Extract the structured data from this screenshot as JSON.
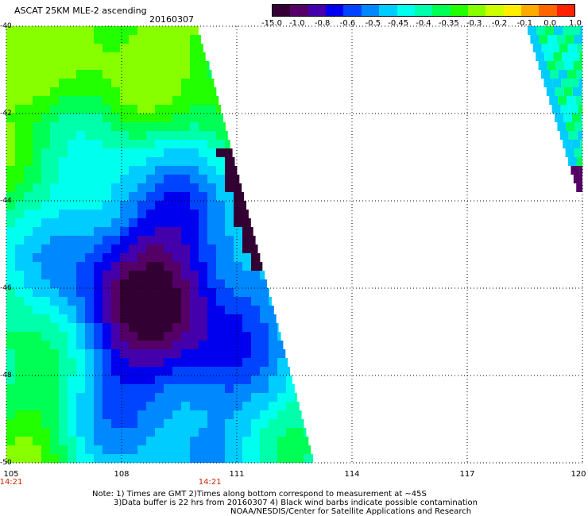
{
  "header": {
    "title": "ASCAT 25KM MLE-2 ascending",
    "date": "20160307"
  },
  "colorbar": {
    "colors": [
      "#330033",
      "#550066",
      "#4400aa",
      "#0000ee",
      "#0044ff",
      "#0088ff",
      "#00ccff",
      "#00ffee",
      "#00ffaa",
      "#00ff55",
      "#22ff00",
      "#88ff00",
      "#ccff00",
      "#ffee00",
      "#ffaa00",
      "#ff6600",
      "#ff2200"
    ],
    "labels": [
      "-15.0",
      "-1.0",
      "-0.8",
      "-0.6",
      "-0.5",
      "-0.45",
      "-0.4",
      "-0.35",
      "-0.3",
      "-0.2",
      "-0.1",
      "0.0",
      "1.0"
    ]
  },
  "map": {
    "lon_range": [
      105,
      120
    ],
    "lat_range": [
      -40,
      -50
    ],
    "lon_ticks": [
      "105",
      "108",
      "111",
      "114",
      "117",
      "120"
    ],
    "lat_ticks": [
      "-40",
      "-42",
      "-44",
      "-46",
      "-48",
      "-50"
    ],
    "grid": true,
    "grid_style": "dotted",
    "time_labels": [
      {
        "lon": 105,
        "text": "14:21"
      },
      {
        "lon": 110.3,
        "text": "14:21"
      }
    ]
  },
  "notes": {
    "line1": "Note: 1) Times are GMT 2)Times along bottom correspond to measurement at ~45S",
    "line2": "3)Data buffer is 22 hrs from 20160307 4) Black wind barbs indicate possible contamination",
    "line3": "NOAA/NESDIS/Center for Satellite Applications and Research"
  }
}
